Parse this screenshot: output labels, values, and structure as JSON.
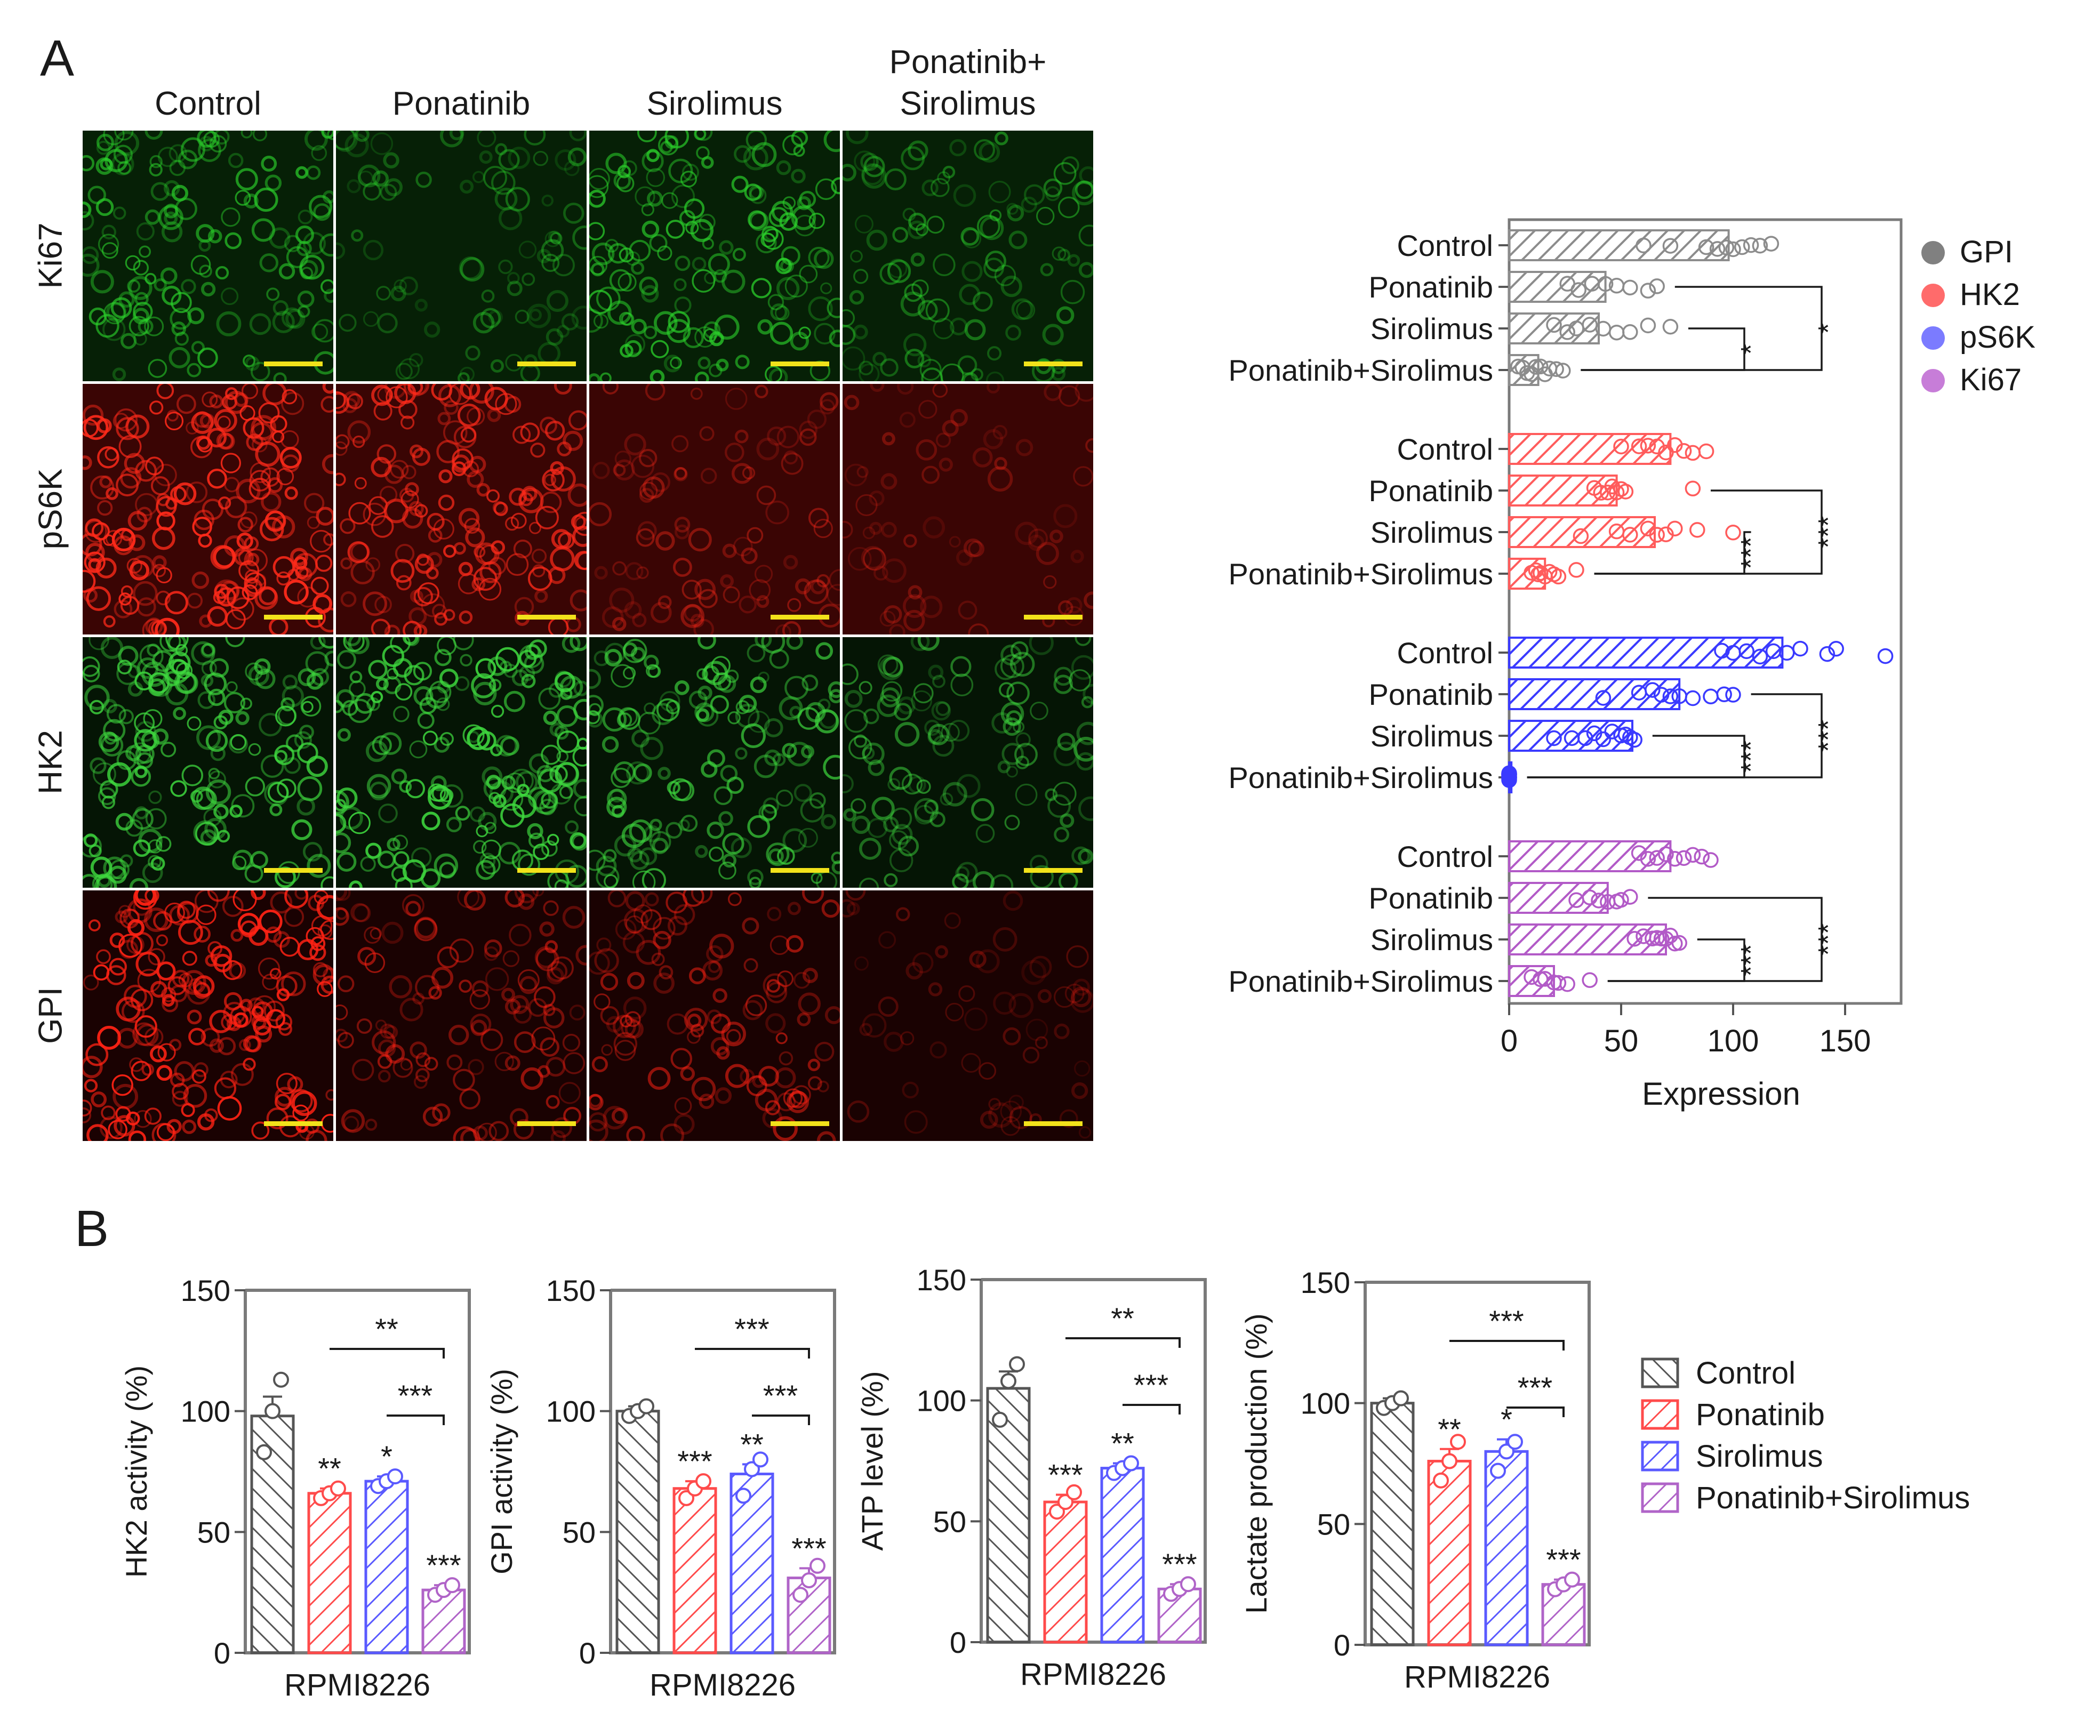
{
  "panel_labels": {
    "a": "A",
    "b": "B"
  },
  "micrographs": {
    "columns": [
      "Control",
      "Ponatinib",
      "Sirolimus",
      "Ponatinib+\nSirolimus"
    ],
    "rows": [
      {
        "label": "Ki67",
        "stain_color": "#2bd12b",
        "background": "#062006",
        "intensity": [
          0.75,
          0.45,
          0.8,
          0.55
        ]
      },
      {
        "label": "pS6K",
        "stain_color": "#ff2a1a",
        "background": "#3a0504",
        "intensity": [
          1.0,
          0.85,
          0.45,
          0.35
        ]
      },
      {
        "label": "HK2",
        "stain_color": "#3ed83e",
        "background": "#051505",
        "intensity": [
          0.9,
          0.95,
          0.75,
          0.6
        ]
      },
      {
        "label": "GPI",
        "stain_color": "#ff2214",
        "background": "#1a0202",
        "intensity": [
          1.0,
          0.6,
          0.6,
          0.3
        ]
      }
    ],
    "scalebar_color": "#f2e21a"
  },
  "chart_data": [
    {
      "type": "bar",
      "orientation": "horizontal",
      "xlabel": "Expression",
      "xlim": [
        0,
        175
      ],
      "xticks": [
        0,
        50,
        100,
        150
      ],
      "legend": {
        "placement": "right",
        "items": [
          {
            "name": "GPI",
            "color": "#808080"
          },
          {
            "name": "HK2",
            "color": "#ff6b6b"
          },
          {
            "name": "pS6K",
            "color": "#7b7bff"
          },
          {
            "name": "Ki67",
            "color": "#c77dd8"
          }
        ]
      },
      "groups": [
        {
          "name": "GPI",
          "color": "#8c8c8c",
          "categories": [
            "Control",
            "Ponatinib",
            "Sirolimus",
            "Ponatinib+Sirolimus"
          ],
          "values": [
            98,
            43,
            40,
            13
          ],
          "points": [
            [
              60,
              72,
              88,
              93,
              97,
              100,
              104,
              108,
              112,
              117
            ],
            [
              26,
              31,
              37,
              43,
              48,
              54,
              62,
              66
            ],
            [
              20,
              26,
              30,
              36,
              42,
              48,
              54,
              62,
              72
            ],
            [
              4,
              6,
              8,
              10,
              12,
              14,
              16,
              18,
              21,
              24
            ]
          ],
          "significance": [
            {
              "a": 1,
              "b": 3,
              "label": "*"
            },
            {
              "a": 2,
              "b": 3,
              "label": "*"
            }
          ]
        },
        {
          "name": "HK2",
          "color": "#ff5c5c",
          "categories": [
            "Control",
            "Ponatinib",
            "Sirolimus",
            "Ponatinib+Sirolimus"
          ],
          "values": [
            72,
            48,
            65,
            16
          ],
          "points": [
            [
              50,
              58,
              62,
              66,
              70,
              74,
              78,
              82,
              88
            ],
            [
              38,
              41,
              44,
              46,
              48,
              50,
              52,
              82
            ],
            [
              32,
              48,
              54,
              62,
              66,
              70,
              74,
              84,
              100
            ],
            [
              10,
              12,
              13,
              14,
              16,
              18,
              20,
              22,
              30
            ]
          ],
          "significance": [
            {
              "a": 1,
              "b": 3,
              "label": "***"
            },
            {
              "a": 2,
              "b": 3,
              "label": "***"
            }
          ]
        },
        {
          "name": "pS6K",
          "color": "#3a3aff",
          "categories": [
            "Control",
            "Ponatinib",
            "Sirolimus",
            "Ponatinib+Sirolimus"
          ],
          "values": [
            122,
            76,
            55,
            1
          ],
          "points": [
            [
              95,
              100,
              106,
              112,
              118,
              124,
              130,
              142,
              146,
              168
            ],
            [
              42,
              58,
              64,
              68,
              72,
              76,
              82,
              90,
              96,
              100
            ],
            [
              20,
              28,
              34,
              38,
              42,
              46,
              50,
              52,
              54,
              56
            ],
            [
              0,
              0,
              0,
              0,
              0,
              0,
              0,
              0,
              0,
              0
            ]
          ],
          "significance": [
            {
              "a": 1,
              "b": 3,
              "label": "***"
            },
            {
              "a": 2,
              "b": 3,
              "label": "***"
            }
          ]
        },
        {
          "name": "Ki67",
          "color": "#b25ac7",
          "categories": [
            "Control",
            "Ponatinib",
            "Sirolimus",
            "Ponatinib+Sirolimus"
          ],
          "values": [
            72,
            44,
            70,
            20
          ],
          "points": [
            [
              58,
              62,
              66,
              70,
              74,
              78,
              82,
              86,
              90
            ],
            [
              30,
              36,
              40,
              44,
              48,
              50,
              54
            ],
            [
              56,
              60,
              64,
              66,
              68,
              70,
              72,
              74,
              76
            ],
            [
              10,
              14,
              16,
              20,
              22,
              26,
              36
            ]
          ],
          "significance": [
            {
              "a": 1,
              "b": 3,
              "label": "***"
            },
            {
              "a": 2,
              "b": 3,
              "label": "***"
            }
          ]
        }
      ]
    },
    {
      "type": "bar",
      "ylabel": "HK2 activity (%)",
      "xlabel": "RPMI8226",
      "ylim": [
        0,
        150
      ],
      "yticks": [
        0,
        50,
        100,
        150
      ],
      "categories": [
        "Control",
        "Ponatinib",
        "Sirolimus",
        "Ponatinib+Sirolimus"
      ],
      "values": [
        98,
        66,
        71,
        26
      ],
      "errors": [
        8,
        2,
        2,
        2
      ],
      "points": [
        [
          83,
          100,
          113
        ],
        [
          64,
          66,
          68
        ],
        [
          69,
          71,
          73
        ],
        [
          24,
          26,
          28
        ]
      ],
      "marks": [
        "",
        "**",
        "*",
        "***"
      ],
      "brackets": [
        {
          "a": 1,
          "b": 3,
          "label": "**"
        },
        {
          "a": 2,
          "b": 3,
          "label": "***"
        }
      ]
    },
    {
      "type": "bar",
      "ylabel": "GPI activity (%)",
      "xlabel": "RPMI8226",
      "ylim": [
        0,
        150
      ],
      "yticks": [
        0,
        50,
        100,
        150
      ],
      "categories": [
        "Control",
        "Ponatinib",
        "Sirolimus",
        "Ponatinib+Sirolimus"
      ],
      "values": [
        100,
        68,
        74,
        31
      ],
      "errors": [
        2,
        3,
        4,
        4
      ],
      "points": [
        [
          98,
          100,
          102
        ],
        [
          64,
          68,
          71
        ],
        [
          65,
          76,
          80
        ],
        [
          24,
          30,
          36
        ]
      ],
      "marks": [
        "",
        "***",
        "**",
        "***"
      ],
      "brackets": [
        {
          "a": 1,
          "b": 3,
          "label": "***"
        },
        {
          "a": 2,
          "b": 3,
          "label": "***"
        }
      ]
    },
    {
      "type": "bar",
      "ylabel": "ATP level (%)",
      "xlabel": "RPMI8226",
      "ylim": [
        0,
        150
      ],
      "yticks": [
        0,
        50,
        100,
        150
      ],
      "categories": [
        "Control",
        "Ponatinib",
        "Sirolimus",
        "Ponatinib+Sirolimus"
      ],
      "values": [
        105,
        58,
        72,
        22
      ],
      "errors": [
        7,
        3,
        2,
        2
      ],
      "points": [
        [
          92,
          108,
          115
        ],
        [
          54,
          58,
          62
        ],
        [
          70,
          72,
          74
        ],
        [
          20,
          22,
          24
        ]
      ],
      "marks": [
        "",
        "***",
        "**",
        "***"
      ],
      "brackets": [
        {
          "a": 1,
          "b": 3,
          "label": "**"
        },
        {
          "a": 2,
          "b": 3,
          "label": "***"
        }
      ]
    },
    {
      "type": "bar",
      "ylabel": "Lactate production (%)",
      "xlabel": "RPMI8226",
      "ylim": [
        0,
        150
      ],
      "yticks": [
        0,
        50,
        100,
        150
      ],
      "categories": [
        "Control",
        "Ponatinib",
        "Sirolimus",
        "Ponatinib+Sirolimus"
      ],
      "values": [
        100,
        76,
        80,
        25
      ],
      "errors": [
        2,
        5,
        5,
        2
      ],
      "points": [
        [
          98,
          100,
          102
        ],
        [
          68,
          76,
          84
        ],
        [
          72,
          80,
          84
        ],
        [
          23,
          25,
          27
        ]
      ],
      "marks": [
        "",
        "**",
        "*",
        "***"
      ],
      "brackets": [
        {
          "a": 1,
          "b": 3,
          "label": "***"
        },
        {
          "a": 2,
          "b": 3,
          "label": "***"
        }
      ]
    }
  ],
  "legend_b": {
    "placement": "right",
    "items": [
      {
        "name": "Control",
        "color": "#555555"
      },
      {
        "name": "Ponatinib",
        "color": "#ff4b4b"
      },
      {
        "name": "Sirolimus",
        "color": "#5a5aff"
      },
      {
        "name": "Ponatinib+Sirolimus",
        "color": "#b064c8"
      }
    ]
  }
}
